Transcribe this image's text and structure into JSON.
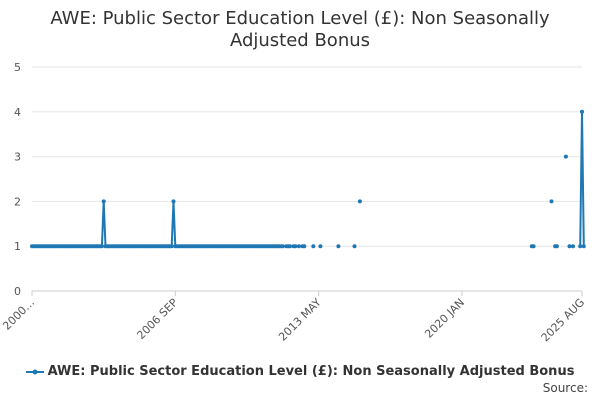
{
  "chart_data": {
    "type": "line",
    "title": "AWE: Public Sector Education Level (£): Non Seasonally Adjusted Bonus",
    "xlabel": "",
    "ylabel": "",
    "x_tick_labels": [
      "2000…",
      "2006 SEP",
      "2013 MAY",
      "2020 JAN",
      "2025 AUG"
    ],
    "x_tick_dates": [
      "2000-01",
      "2006-09",
      "2013-05",
      "2020-01",
      "2025-08"
    ],
    "x_range": [
      "2000-01",
      "2025-08"
    ],
    "ylim": [
      0,
      5
    ],
    "yticks": [
      0,
      1,
      2,
      3,
      4,
      5
    ],
    "grid": true,
    "legend_position": "bottom",
    "series": [
      {
        "name": "AWE: Public Sector Education Level (£): Non Seasonally Adjusted Bonus",
        "color": "#1f77b4",
        "points": [
          [
            "2000-01",
            1
          ],
          [
            "2000-02",
            1
          ],
          [
            "2000-03",
            1
          ],
          [
            "2000-04",
            1
          ],
          [
            "2000-05",
            1
          ],
          [
            "2000-06",
            1
          ],
          [
            "2000-07",
            1
          ],
          [
            "2000-08",
            1
          ],
          [
            "2000-09",
            1
          ],
          [
            "2000-10",
            1
          ],
          [
            "2000-11",
            1
          ],
          [
            "2000-12",
            1
          ],
          [
            "2001-01",
            1
          ],
          [
            "2001-02",
            1
          ],
          [
            "2001-03",
            1
          ],
          [
            "2001-04",
            1
          ],
          [
            "2001-05",
            1
          ],
          [
            "2001-06",
            1
          ],
          [
            "2001-07",
            1
          ],
          [
            "2001-08",
            1
          ],
          [
            "2001-09",
            1
          ],
          [
            "2001-10",
            1
          ],
          [
            "2001-11",
            1
          ],
          [
            "2001-12",
            1
          ],
          [
            "2002-01",
            1
          ],
          [
            "2002-02",
            1
          ],
          [
            "2002-03",
            1
          ],
          [
            "2002-04",
            1
          ],
          [
            "2002-05",
            1
          ],
          [
            "2002-06",
            1
          ],
          [
            "2002-07",
            1
          ],
          [
            "2002-08",
            1
          ],
          [
            "2002-09",
            1
          ],
          [
            "2002-10",
            1
          ],
          [
            "2002-11",
            1
          ],
          [
            "2002-12",
            1
          ],
          [
            "2003-01",
            1
          ],
          [
            "2003-02",
            1
          ],
          [
            "2003-03",
            1
          ],
          [
            "2003-04",
            1
          ],
          [
            "2003-05",
            2
          ],
          [
            "2003-06",
            1
          ],
          [
            "2003-07",
            1
          ],
          [
            "2003-08",
            1
          ],
          [
            "2003-09",
            1
          ],
          [
            "2003-10",
            1
          ],
          [
            "2003-11",
            1
          ],
          [
            "2003-12",
            1
          ],
          [
            "2004-01",
            1
          ],
          [
            "2004-02",
            1
          ],
          [
            "2004-03",
            1
          ],
          [
            "2004-04",
            1
          ],
          [
            "2004-05",
            1
          ],
          [
            "2004-06",
            1
          ],
          [
            "2004-07",
            1
          ],
          [
            "2004-08",
            1
          ],
          [
            "2004-09",
            1
          ],
          [
            "2004-10",
            1
          ],
          [
            "2004-11",
            1
          ],
          [
            "2004-12",
            1
          ],
          [
            "2005-01",
            1
          ],
          [
            "2005-02",
            1
          ],
          [
            "2005-03",
            1
          ],
          [
            "2005-04",
            1
          ],
          [
            "2005-05",
            1
          ],
          [
            "2005-06",
            1
          ],
          [
            "2005-07",
            1
          ],
          [
            "2005-08",
            1
          ],
          [
            "2005-09",
            1
          ],
          [
            "2005-10",
            1
          ],
          [
            "2005-11",
            1
          ],
          [
            "2005-12",
            1
          ],
          [
            "2006-01",
            1
          ],
          [
            "2006-02",
            1
          ],
          [
            "2006-03",
            1
          ],
          [
            "2006-04",
            1
          ],
          [
            "2006-05",
            1
          ],
          [
            "2006-06",
            1
          ],
          [
            "2006-07",
            1
          ],
          [
            "2006-08",
            2
          ],
          [
            "2006-09",
            1
          ],
          [
            "2006-10",
            1
          ],
          [
            "2006-11",
            1
          ],
          [
            "2006-12",
            1
          ],
          [
            "2007-01",
            1
          ],
          [
            "2007-02",
            1
          ],
          [
            "2007-03",
            1
          ],
          [
            "2007-04",
            1
          ],
          [
            "2007-05",
            1
          ],
          [
            "2007-06",
            1
          ],
          [
            "2007-07",
            1
          ],
          [
            "2007-08",
            1
          ],
          [
            "2007-09",
            1
          ],
          [
            "2007-10",
            1
          ],
          [
            "2007-11",
            1
          ],
          [
            "2007-12",
            1
          ],
          [
            "2008-01",
            1
          ],
          [
            "2008-02",
            1
          ],
          [
            "2008-03",
            1
          ],
          [
            "2008-04",
            1
          ],
          [
            "2008-05",
            1
          ],
          [
            "2008-06",
            1
          ],
          [
            "2008-07",
            1
          ],
          [
            "2008-08",
            1
          ],
          [
            "2008-09",
            1
          ],
          [
            "2008-10",
            1
          ],
          [
            "2008-11",
            1
          ],
          [
            "2008-12",
            1
          ],
          [
            "2009-01",
            1
          ],
          [
            "2009-02",
            1
          ],
          [
            "2009-03",
            1
          ],
          [
            "2009-04",
            1
          ],
          [
            "2009-05",
            1
          ],
          [
            "2009-06",
            1
          ],
          [
            "2009-07",
            1
          ],
          [
            "2009-08",
            1
          ],
          [
            "2009-09",
            1
          ],
          [
            "2009-10",
            1
          ],
          [
            "2009-11",
            1
          ],
          [
            "2009-12",
            1
          ],
          [
            "2010-01",
            1
          ],
          [
            "2010-02",
            1
          ],
          [
            "2010-03",
            1
          ],
          [
            "2010-04",
            1
          ],
          [
            "2010-05",
            1
          ],
          [
            "2010-06",
            1
          ],
          [
            "2010-07",
            1
          ],
          [
            "2010-08",
            1
          ],
          [
            "2010-09",
            1
          ],
          [
            "2010-10",
            1
          ],
          [
            "2010-11",
            1
          ],
          [
            "2010-12",
            1
          ],
          [
            "2011-01",
            1
          ],
          [
            "2011-02",
            1
          ],
          [
            "2011-03",
            1
          ],
          [
            "2011-04",
            1
          ],
          [
            "2011-05",
            1
          ],
          [
            "2011-06",
            1
          ],
          [
            "2011-07",
            1
          ],
          [
            "2011-08",
            1
          ],
          [
            "2011-09",
            1
          ],
          [
            "2011-11",
            1
          ],
          [
            "2011-12",
            1
          ],
          [
            "2012-01",
            1
          ],
          [
            "2012-03",
            1
          ],
          [
            "2012-04",
            1
          ],
          [
            "2012-06",
            1
          ],
          [
            "2012-08",
            1
          ],
          [
            "2012-09",
            1
          ],
          [
            "2013-02",
            1
          ],
          [
            "2013-06",
            1
          ],
          [
            "2014-04",
            1
          ],
          [
            "2015-01",
            1
          ],
          [
            "2015-04",
            2
          ],
          [
            "2023-04",
            1
          ],
          [
            "2023-05",
            1
          ],
          [
            "2024-03",
            2
          ],
          [
            "2024-05",
            1
          ],
          [
            "2024-06",
            1
          ],
          [
            "2024-11",
            3
          ],
          [
            "2025-01",
            1
          ],
          [
            "2025-03",
            1
          ],
          [
            "2025-07",
            1
          ],
          [
            "2025-08",
            4
          ],
          [
            "2025-09",
            1
          ]
        ]
      }
    ]
  },
  "source_label": "Source:"
}
